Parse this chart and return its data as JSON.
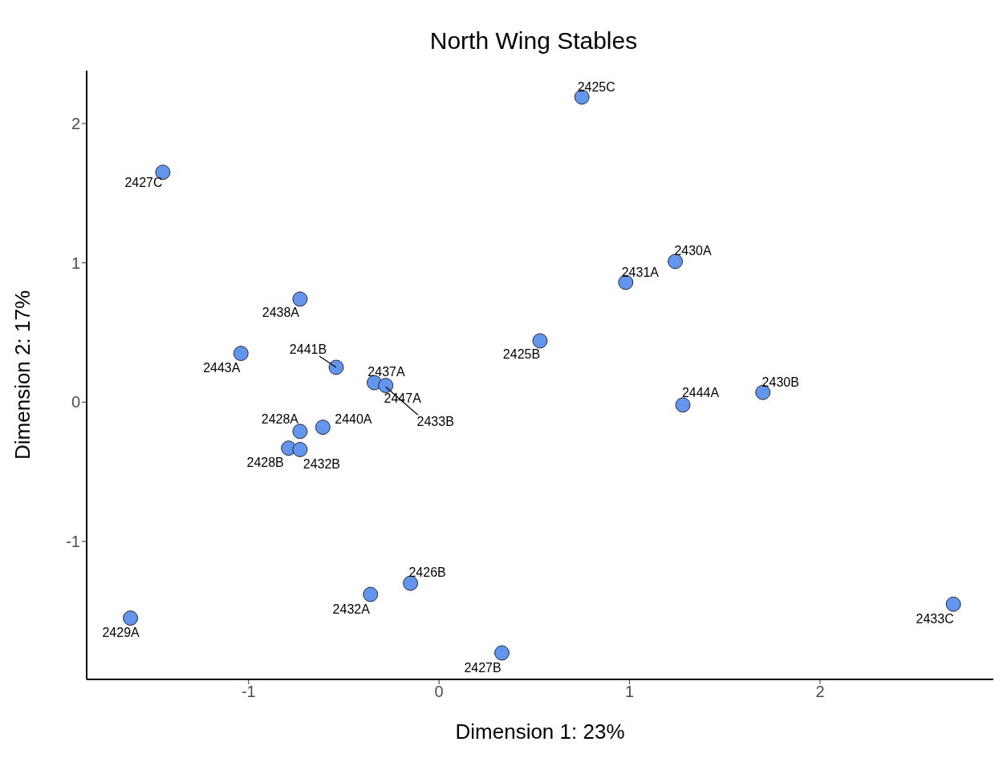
{
  "chart_data": {
    "type": "scatter",
    "title": "North Wing Stables",
    "xlabel": "Dimension 1:  23%",
    "ylabel": "Dimension 2:  17%",
    "x": [
      0.75,
      -1.45,
      1.24,
      0.98,
      -0.73,
      0.53,
      -1.04,
      -0.54,
      -0.34,
      -0.28,
      1.28,
      1.7,
      -0.61,
      -0.73,
      -0.79,
      -0.73,
      -0.15,
      -0.36,
      -1.62,
      0.33,
      2.7
    ],
    "series": [
      {
        "color": "#6495ed",
        "values": [
          2.19,
          1.65,
          1.01,
          0.86,
          0.74,
          0.44,
          0.35,
          0.25,
          0.14,
          0.12,
          -0.02,
          0.07,
          -0.18,
          -0.21,
          -0.33,
          -0.34,
          -1.3,
          -1.38,
          -1.55,
          -1.8,
          -1.45
        ]
      }
    ],
    "annotations": [
      {
        "text": "2425C",
        "x": 0.75,
        "y": 2.19
      },
      {
        "text": "2427C",
        "x": -1.45,
        "y": 1.65
      },
      {
        "text": "2430A",
        "x": 1.24,
        "y": 1.01
      },
      {
        "text": "2431A",
        "x": 0.98,
        "y": 0.86
      },
      {
        "text": "2438A",
        "x": -0.73,
        "y": 0.74
      },
      {
        "text": "2425B",
        "x": 0.53,
        "y": 0.44
      },
      {
        "text": "2443A",
        "x": -1.04,
        "y": 0.35
      },
      {
        "text": "2441B",
        "x": -0.54,
        "y": 0.25
      },
      {
        "text": "2437A",
        "x": -0.34,
        "y": 0.14
      },
      {
        "text": "2447A",
        "x": -0.28,
        "y": 0.12
      },
      {
        "text": "2433B",
        "x": -0.28,
        "y": 0.11
      },
      {
        "text": "2444A",
        "x": 1.28,
        "y": -0.02
      },
      {
        "text": "2430B",
        "x": 1.7,
        "y": 0.07
      },
      {
        "text": "2440A",
        "x": -0.61,
        "y": -0.18
      },
      {
        "text": "2428A",
        "x": -0.73,
        "y": -0.21
      },
      {
        "text": "2428B",
        "x": -0.79,
        "y": -0.33
      },
      {
        "text": "2432B",
        "x": -0.73,
        "y": -0.34
      },
      {
        "text": "2426B",
        "x": -0.15,
        "y": -1.3
      },
      {
        "text": "2432A",
        "x": -0.36,
        "y": -1.38
      },
      {
        "text": "2429A",
        "x": -1.62,
        "y": -1.55
      },
      {
        "text": "2427B",
        "x": 0.33,
        "y": -1.8
      },
      {
        "text": "2433C",
        "x": 2.7,
        "y": -1.45
      }
    ],
    "xlim": [
      -1.85,
      2.91
    ],
    "ylim": [
      -1.99,
      2.38
    ],
    "xticks": [
      -1,
      0,
      1,
      2
    ],
    "yticks": [
      -1,
      0,
      1,
      2
    ],
    "grid": false,
    "legend": false,
    "marker": "circle"
  }
}
